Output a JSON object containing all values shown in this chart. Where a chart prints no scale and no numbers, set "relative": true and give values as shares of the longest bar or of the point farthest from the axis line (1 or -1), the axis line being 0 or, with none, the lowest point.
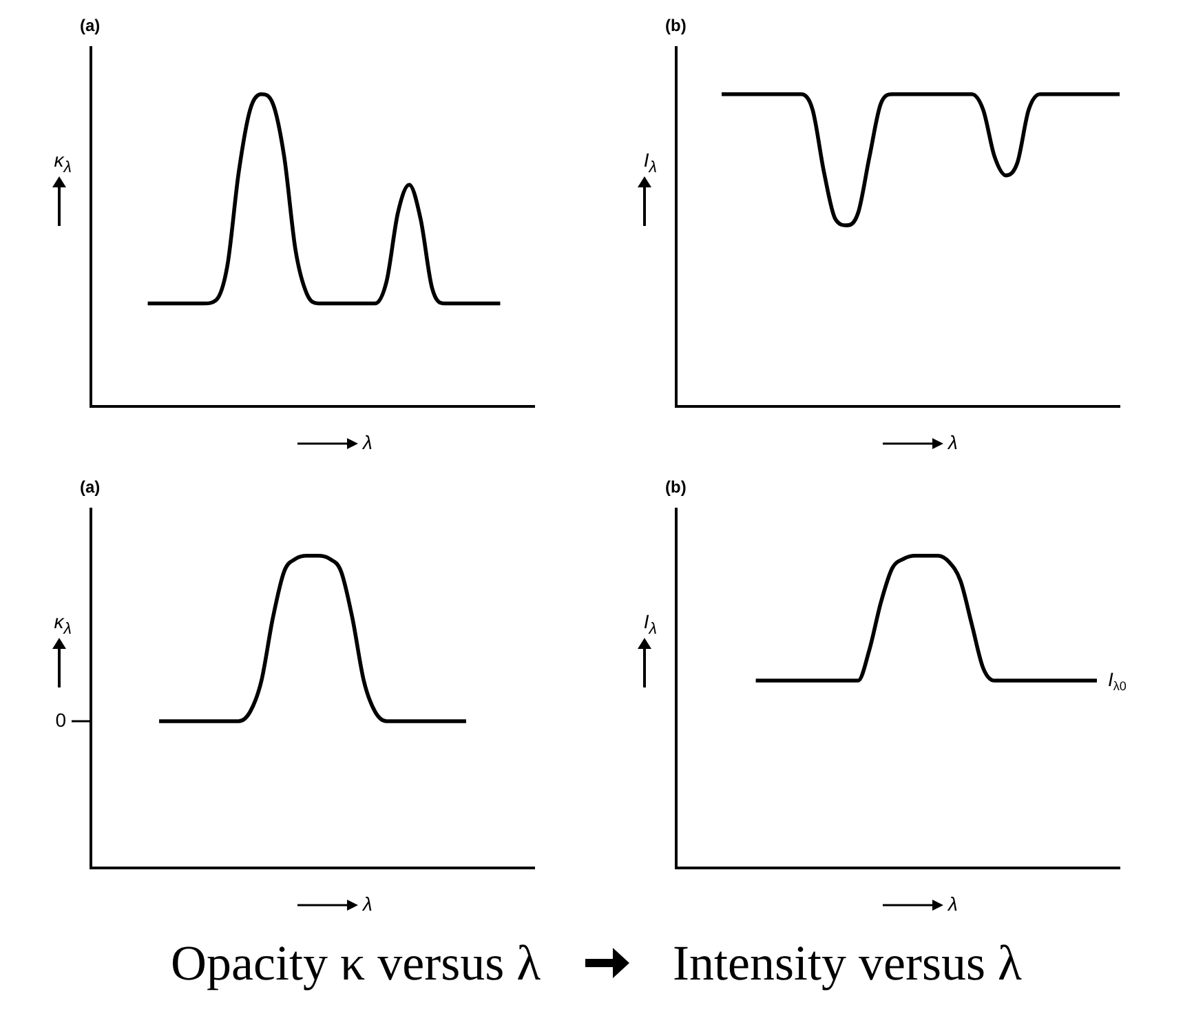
{
  "chart_data": [
    {
      "type": "line",
      "title": "(a)",
      "ylabel": "κ$_{λ}$",
      "xlabel": "λ",
      "relative": true,
      "color": "#000000",
      "categories": [
        null,
        null,
        null,
        null,
        null,
        null,
        null,
        null,
        null,
        null,
        null,
        null,
        null,
        null,
        null,
        null,
        null,
        null,
        null,
        null,
        null,
        null,
        null,
        null,
        null,
        null,
        null,
        null,
        null,
        null,
        null,
        null,
        null,
        null,
        null,
        null,
        null,
        null,
        null,
        null
      ],
      "values": [
        null,
        null,
        null,
        null,
        null,
        0.33,
        0.33,
        0.33,
        0.33,
        0.33,
        0.33,
        0.34,
        0.45,
        0.75,
        0.95,
        1,
        0.97,
        0.8,
        0.5,
        0.36,
        0.33,
        0.33,
        0.33,
        0.33,
        0.33,
        0.33,
        0.4,
        0.62,
        0.71,
        0.6,
        0.38,
        0.33,
        0.33,
        0.33,
        0.33,
        0.33,
        0.33,
        null,
        null,
        null
      ]
    },
    {
      "type": "line",
      "title": "(b)",
      "ylabel": "I$_{λ}$",
      "xlabel": "λ",
      "relative": true,
      "color": "#000000",
      "categories": [
        null,
        null,
        null,
        null,
        null,
        null,
        null,
        null,
        null,
        null,
        null,
        null,
        null,
        null,
        null,
        null,
        null,
        null,
        null,
        null,
        null,
        null,
        null,
        null,
        null,
        null,
        null,
        null,
        null,
        null,
        null,
        null,
        null,
        null,
        null,
        null,
        null,
        null,
        null,
        null
      ],
      "values": [
        null,
        null,
        null,
        null,
        1,
        1,
        1,
        1,
        1,
        1,
        1,
        1,
        0.95,
        0.75,
        0.6,
        0.58,
        0.62,
        0.8,
        0.97,
        1,
        1,
        1,
        1,
        1,
        1,
        1,
        1,
        0.95,
        0.8,
        0.74,
        0.78,
        0.95,
        1,
        1,
        1,
        1,
        1,
        1,
        1,
        1
      ]
    },
    {
      "type": "line",
      "title": "(a)",
      "ylabel": "κ$_{λ}$",
      "xlabel": "λ",
      "relative": true,
      "color": "#000000",
      "annotations": [
        "0"
      ],
      "categories": [
        null,
        null,
        null,
        null,
        null,
        null,
        null,
        null,
        null,
        null,
        null,
        null,
        null,
        null,
        null,
        null,
        null,
        null,
        null,
        null,
        null,
        null,
        null,
        null,
        null,
        null,
        null,
        null,
        null,
        null,
        null,
        null,
        null,
        null,
        null,
        null,
        null,
        null,
        null,
        null
      ],
      "values": [
        null,
        null,
        null,
        null,
        null,
        null,
        0.47,
        0.47,
        0.47,
        0.47,
        0.47,
        0.47,
        0.47,
        0.47,
        0.5,
        0.6,
        0.8,
        0.95,
        0.99,
        1,
        1,
        0.99,
        0.95,
        0.8,
        0.6,
        0.5,
        0.47,
        0.47,
        0.47,
        0.47,
        0.47,
        0.47,
        0.47,
        0.47,
        null,
        null,
        null,
        null,
        null,
        null
      ]
    },
    {
      "type": "line",
      "title": "(b)",
      "ylabel": "I$_{λ}$",
      "xlabel": "λ",
      "relative": true,
      "color": "#000000",
      "annotations": [
        "I$_{λ0}$"
      ],
      "categories": [
        null,
        null,
        null,
        null,
        null,
        null,
        null,
        null,
        null,
        null,
        null,
        null,
        null,
        null,
        null,
        null,
        null,
        null,
        null,
        null,
        null,
        null,
        null,
        null,
        null,
        null,
        null,
        null,
        null,
        null,
        null,
        null,
        null,
        null,
        null,
        null,
        null,
        null,
        null,
        null
      ],
      "values": [
        null,
        null,
        null,
        null,
        null,
        null,
        null,
        0.6,
        0.6,
        0.6,
        0.6,
        0.6,
        0.6,
        0.6,
        0.6,
        0.6,
        0.6,
        0.7,
        0.85,
        0.96,
        0.99,
        1,
        1,
        1,
        0.98,
        0.92,
        0.78,
        0.64,
        0.6,
        0.6,
        0.6,
        0.6,
        0.6,
        0.6,
        0.6,
        0.6,
        0.6,
        0.6,
        null,
        null
      ]
    },
    {
      "type": "other",
      "annotations": [
        "Opacity κ versus λ",
        "Intensity versus λ"
      ]
    }
  ]
}
